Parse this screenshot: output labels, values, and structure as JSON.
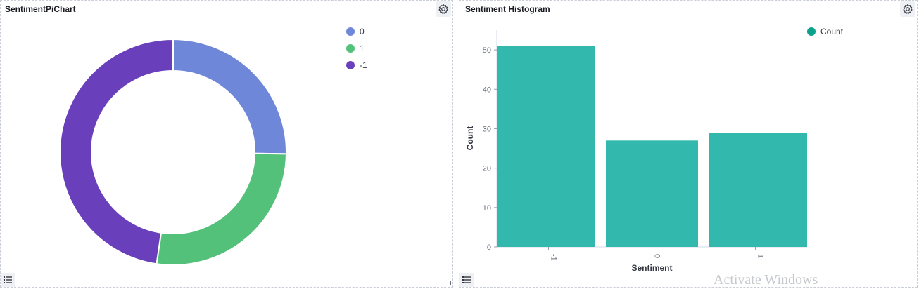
{
  "left_panel": {
    "title": "SentimentPiChart"
  },
  "right_panel": {
    "title": "Sentiment Histogram"
  },
  "watermark": "Activate Windows",
  "chart_data": [
    {
      "type": "pie",
      "donut": true,
      "title": "SentimentPiChart",
      "legend_position": "top-right",
      "slices": [
        {
          "label": "0",
          "value": 27,
          "color": "#6f87d8"
        },
        {
          "label": "1",
          "value": 29,
          "color": "#54c17a"
        },
        {
          "label": "-1",
          "value": 51,
          "color": "#6a3fbb"
        }
      ]
    },
    {
      "type": "bar",
      "title": "Sentiment Histogram",
      "categories": [
        "-1",
        "0",
        "1"
      ],
      "series": [
        {
          "name": "Count",
          "values": [
            51,
            27,
            29
          ],
          "color": "#33b8ad"
        }
      ],
      "xlabel": "Sentiment",
      "ylabel": "Count",
      "ylim": [
        0,
        55
      ],
      "yticks": [
        0,
        10,
        20,
        30,
        40,
        50
      ],
      "legend_position": "top-right",
      "legend_marker_color": "#0aa28b"
    }
  ]
}
